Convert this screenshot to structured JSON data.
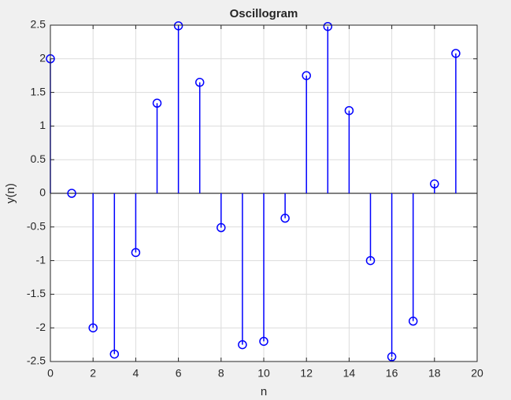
{
  "chart_data": {
    "type": "stem",
    "title": "Oscillogram",
    "x_label": "n",
    "y_label": "y(n)",
    "series": [
      {
        "color": "#0000ff",
        "x": [
          0,
          1,
          2,
          3,
          4,
          5,
          6,
          7,
          8,
          9,
          10,
          11,
          12,
          13,
          14,
          15,
          16,
          17,
          18,
          19
        ],
        "values": [
          2.0,
          0,
          -2.0,
          -2.39,
          -0.88,
          1.34,
          2.49,
          1.65,
          -0.51,
          -2.25,
          -2.2,
          -0.37,
          1.75,
          2.48,
          1.23,
          -1.0,
          -2.43,
          -1.9,
          0.14,
          2.08
        ]
      }
    ],
    "xlim": [
      0,
      20
    ],
    "xticks": [
      0,
      2,
      4,
      6,
      8,
      10,
      12,
      14,
      16,
      18,
      20
    ],
    "ylim": [
      -2.5,
      2.5
    ],
    "yticks": [
      -2.5,
      -2,
      -1.5,
      -1,
      -0.5,
      0,
      0.5,
      1,
      1.5,
      2,
      2.5
    ],
    "grid": true
  }
}
